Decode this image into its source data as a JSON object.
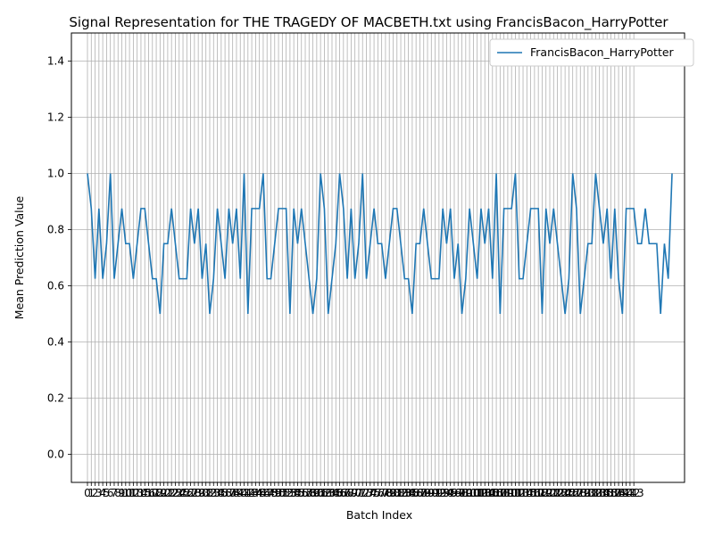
{
  "chart_data": {
    "type": "line",
    "title": "Signal Representation for THE TRAGEDY OF MACBETH.txt using FrancisBacon_HarryPotter",
    "xlabel": "Batch Index",
    "ylabel": "Mean Prediction Value",
    "xlim": [
      0,
      143
    ],
    "ylim": [
      -0.1,
      1.5
    ],
    "yticks": [
      "0.0",
      "0.2",
      "0.4",
      "0.6",
      "0.8",
      "1.0",
      "1.2",
      "1.4"
    ],
    "grid": true,
    "legend": "top-right",
    "series": [
      {
        "name": "FrancisBacon_HarryPotter",
        "color": "#1f77b4",
        "values": [
          1.0,
          0.875,
          0.625,
          0.875,
          0.625,
          0.75,
          1.0,
          0.625,
          0.75,
          0.875,
          0.75,
          0.75,
          0.625,
          0.75,
          0.875,
          0.875,
          0.75,
          0.625,
          0.625,
          0.5,
          0.75,
          0.75,
          0.875,
          0.75,
          0.625,
          0.625,
          0.625,
          0.875,
          0.75,
          0.875,
          0.625,
          0.75,
          0.5,
          0.625,
          0.875,
          0.75,
          0.625,
          0.875,
          0.75,
          0.875,
          0.625,
          1.0,
          0.5,
          0.875,
          0.875,
          0.875,
          1.0,
          0.625,
          0.625,
          0.75,
          0.875,
          0.875,
          0.875,
          0.5,
          0.875,
          0.75,
          0.875,
          0.75,
          0.625,
          0.5,
          0.625,
          1.0,
          0.875,
          0.5,
          0.625,
          0.75,
          1.0,
          0.875,
          0.625,
          0.875,
          0.625,
          0.75,
          1.0,
          0.625,
          0.75,
          0.875,
          0.75,
          0.75,
          0.625,
          0.75,
          0.875,
          0.875,
          0.75,
          0.625,
          0.625,
          0.5,
          0.75,
          0.75,
          0.875,
          0.75,
          0.625,
          0.625,
          0.625,
          0.875,
          0.75,
          0.875,
          0.625,
          0.75,
          0.5,
          0.625,
          0.875,
          0.75,
          0.625,
          0.875,
          0.75,
          0.875,
          0.625,
          1.0,
          0.5,
          0.875,
          0.875,
          0.875,
          1.0,
          0.625,
          0.625,
          0.75,
          0.875,
          0.875,
          0.875,
          0.5,
          0.875,
          0.75,
          0.875,
          0.75,
          0.625,
          0.5,
          0.625,
          1.0,
          0.875,
          0.5,
          0.625,
          0.75,
          0.75,
          1.0,
          0.875,
          0.75,
          0.875,
          0.625,
          0.875,
          0.625,
          0.5,
          0.875,
          0.875,
          0.875,
          0.75,
          0.75,
          0.875,
          0.75,
          0.75,
          0.75,
          0.5,
          0.75,
          0.625,
          1.0
        ]
      }
    ],
    "xtick_labels_visible": [
      "0",
      "1",
      "2",
      "3",
      "4",
      "5",
      "6",
      "7",
      "8",
      "9",
      "10",
      "11",
      "12",
      "13",
      "14",
      "15",
      "16",
      "17",
      "18",
      "19",
      "20",
      "21",
      "22",
      "23",
      "24",
      "25",
      "26",
      "27",
      "28",
      "29",
      "30",
      "31",
      "32",
      "33",
      "34",
      "35",
      "36",
      "37",
      "38",
      "39",
      "40",
      "41",
      "42",
      "43",
      "44",
      "45",
      "46",
      "47",
      "48",
      "49",
      "50",
      "51",
      "52",
      "53",
      "54",
      "55",
      "56",
      "57",
      "58",
      "59",
      "60",
      "61",
      "62",
      "63",
      "64",
      "65",
      "66",
      "67",
      "68",
      "69",
      "70",
      "71",
      "72",
      "73",
      "74",
      "75",
      "76",
      "77",
      "78",
      "79",
      "80",
      "81",
      "82",
      "83",
      "84",
      "85",
      "86",
      "87",
      "88",
      "89",
      "90",
      "91",
      "92",
      "93",
      "94",
      "95",
      "96",
      "97",
      "98",
      "99",
      "100",
      "101",
      "102",
      "103",
      "104",
      "105",
      "106",
      "107",
      "108",
      "109",
      "110",
      "111",
      "112",
      "113",
      "114",
      "115",
      "116",
      "117",
      "118",
      "119",
      "120",
      "121",
      "122",
      "123",
      "124",
      "125",
      "126",
      "127",
      "128",
      "129",
      "130",
      "131",
      "132",
      "133",
      "134",
      "135",
      "136",
      "137",
      "138",
      "139",
      "140",
      "141",
      "142",
      "143"
    ]
  }
}
